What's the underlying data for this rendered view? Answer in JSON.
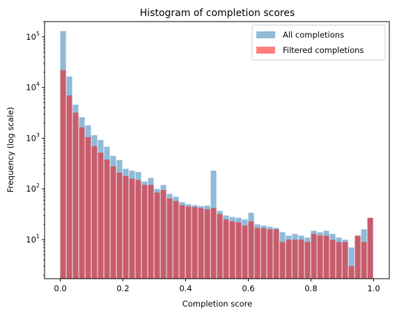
{
  "chart_data": {
    "type": "bar",
    "title": "Histogram of completion scores",
    "xlabel": "Completion score",
    "ylabel": "Frequency (log scale)",
    "xlim": [
      -0.05,
      1.05
    ],
    "ylim": [
      1.7,
      200000
    ],
    "yscale": "log",
    "grid": false,
    "legend_position": "top-right",
    "bin_width": 0.02,
    "x_ticks": [
      0.0,
      0.2,
      0.4,
      0.6,
      0.8,
      1.0
    ],
    "x_tick_labels": [
      "0.0",
      "0.2",
      "0.4",
      "0.6",
      "0.8",
      "1.0"
    ],
    "y_ticks": [
      10,
      100,
      1000,
      10000,
      100000
    ],
    "y_tick_labels": [
      {
        "base": "10",
        "exp": "1"
      },
      {
        "base": "10",
        "exp": "2"
      },
      {
        "base": "10",
        "exp": "3"
      },
      {
        "base": "10",
        "exp": "4"
      },
      {
        "base": "10",
        "exp": "5"
      }
    ],
    "bin_starts": [
      0.0,
      0.02,
      0.04,
      0.06,
      0.08,
      0.1,
      0.12,
      0.14,
      0.16,
      0.18,
      0.2,
      0.22,
      0.24,
      0.26,
      0.28,
      0.3,
      0.32,
      0.34,
      0.36,
      0.38,
      0.4,
      0.42,
      0.44,
      0.46,
      0.48,
      0.5,
      0.52,
      0.54,
      0.56,
      0.58,
      0.6,
      0.62,
      0.64,
      0.66,
      0.68,
      0.7,
      0.72,
      0.74,
      0.76,
      0.78,
      0.8,
      0.82,
      0.84,
      0.86,
      0.88,
      0.9,
      0.92,
      0.94,
      0.96,
      0.98
    ],
    "series": [
      {
        "name": "All completions",
        "color": "#1f77b4",
        "alpha": 0.5,
        "values": [
          130000,
          16500,
          4600,
          2600,
          1800,
          1150,
          920,
          680,
          450,
          370,
          250,
          230,
          215,
          140,
          165,
          100,
          120,
          80,
          70,
          55,
          50,
          48,
          46,
          47,
          230,
          37,
          30,
          28,
          27,
          25,
          34,
          20,
          19,
          18,
          17,
          14,
          12,
          13,
          12,
          11,
          15,
          14,
          15,
          13,
          11,
          10,
          7,
          12,
          16,
          27
        ]
      },
      {
        "name": "Filtered completions",
        "color": "#ff0000",
        "alpha": 0.5,
        "values": [
          22000,
          7000,
          3200,
          1650,
          1050,
          700,
          520,
          380,
          280,
          210,
          180,
          160,
          150,
          120,
          120,
          85,
          95,
          65,
          58,
          48,
          45,
          44,
          42,
          40,
          42,
          32,
          25,
          23,
          22,
          19,
          23,
          17,
          17,
          16,
          16,
          9,
          10,
          10,
          10,
          9,
          13,
          12,
          12,
          10,
          9,
          9,
          3,
          12,
          9,
          27
        ]
      }
    ]
  }
}
